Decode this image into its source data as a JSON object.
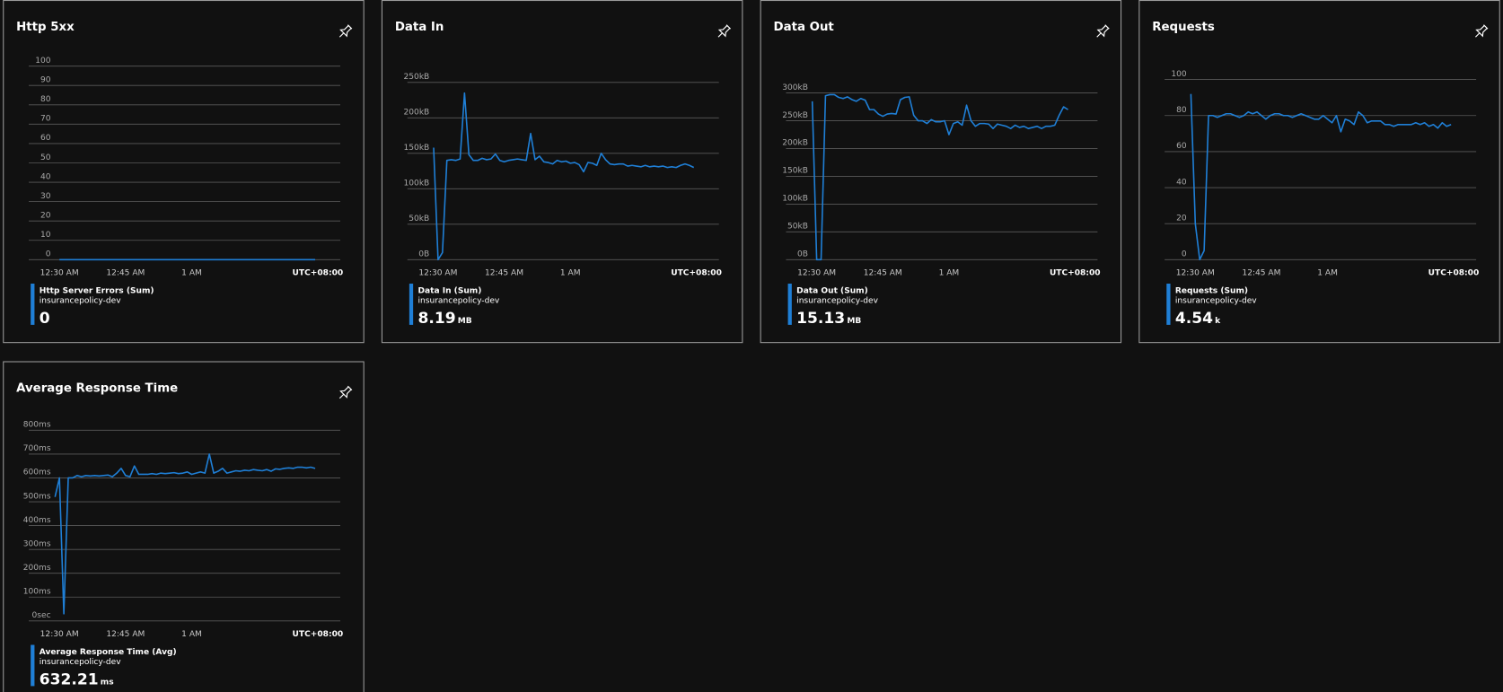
{
  "chart_data": [
    {
      "type": "line",
      "title": "Http 5xx",
      "categories": [
        null,
        "12:30 AM",
        null,
        null,
        null,
        null,
        null,
        null,
        null,
        null,
        null,
        null,
        null,
        null,
        null,
        null,
        "12:45 AM",
        null,
        null,
        null,
        null,
        null,
        null,
        null,
        null,
        null,
        null,
        null,
        null,
        null,
        null,
        "1 AM",
        null,
        null,
        null,
        null,
        null,
        null,
        null,
        null,
        null,
        null,
        null,
        null,
        null,
        null,
        null,
        null,
        null,
        null,
        null,
        null,
        null,
        null,
        null,
        null,
        null,
        null,
        null,
        null,
        null
      ],
      "timezone": "UTC+08:00",
      "ylim": [
        0,
        100
      ],
      "yticks": [
        0,
        10,
        20,
        30,
        40,
        50,
        60,
        70,
        80,
        90,
        100
      ],
      "series": [
        {
          "name": "Http Server Errors (Sum)",
          "resource": "insurancepolicy-dev",
          "color": "#1f7fd6",
          "total": 0,
          "values": [
            null,
            0,
            0,
            0,
            0,
            0,
            0,
            0,
            0,
            0,
            0,
            0,
            0,
            0,
            0,
            0,
            0,
            0,
            0,
            0,
            0,
            0,
            0,
            0,
            0,
            0,
            0,
            0,
            0,
            0,
            0,
            0,
            0,
            0,
            0,
            0,
            0,
            0,
            0,
            0,
            0,
            0,
            0,
            0,
            0,
            0,
            0,
            0,
            0,
            0,
            0,
            0,
            0,
            0,
            0,
            0,
            0,
            0,
            0,
            0,
            null
          ]
        }
      ]
    },
    {
      "type": "line",
      "title": "Data In",
      "categories": [
        null,
        "12:30 AM",
        null,
        null,
        null,
        null,
        null,
        null,
        null,
        null,
        null,
        null,
        null,
        null,
        null,
        null,
        "12:45 AM",
        null,
        null,
        null,
        null,
        null,
        null,
        null,
        null,
        null,
        null,
        null,
        null,
        null,
        null,
        "1 AM",
        null,
        null,
        null,
        null,
        null,
        null,
        null,
        null,
        null,
        null,
        null,
        null,
        null,
        null,
        null,
        null,
        null,
        null,
        null,
        null,
        null,
        null,
        null,
        null,
        null,
        null,
        null,
        null,
        null
      ],
      "timezone": "UTC+08:00",
      "ylim": [
        0,
        250
      ],
      "yticks": [
        {
          "value": 0,
          "label": "0B"
        },
        {
          "value": 50,
          "label": "50kB"
        },
        {
          "value": 100,
          "label": "100kB"
        },
        {
          "value": 150,
          "label": "150kB"
        },
        {
          "value": 200,
          "label": "200kB"
        },
        {
          "value": 250,
          "label": "250kB"
        }
      ],
      "series": [
        {
          "name": "Data In (Sum)",
          "resource": "insurancepolicy-dev",
          "color": "#1f7fd6",
          "total": 8.19,
          "unit": "MB",
          "values": [
            158,
            0,
            10,
            140,
            141,
            140,
            142,
            235,
            148,
            140,
            140,
            143,
            141,
            142,
            149,
            140,
            138,
            140,
            141,
            142,
            141,
            140,
            178,
            141,
            146,
            138,
            137,
            135,
            140,
            138,
            139,
            136,
            137,
            134,
            124,
            137,
            136,
            133,
            150,
            141,
            135,
            134,
            135,
            135,
            132,
            133,
            132,
            131,
            133,
            131,
            132,
            131,
            132,
            130,
            131,
            130,
            133,
            135,
            133,
            130,
            null
          ]
        }
      ]
    },
    {
      "type": "line",
      "title": "Data Out",
      "categories": [
        null,
        "12:30 AM",
        null,
        null,
        null,
        null,
        null,
        null,
        null,
        null,
        null,
        null,
        null,
        null,
        null,
        null,
        "12:45 AM",
        null,
        null,
        null,
        null,
        null,
        null,
        null,
        null,
        null,
        null,
        null,
        null,
        null,
        null,
        "1 AM",
        null,
        null,
        null,
        null,
        null,
        null,
        null,
        null,
        null,
        null,
        null,
        null,
        null,
        null,
        null,
        null,
        null,
        null,
        null,
        null,
        null,
        null,
        null,
        null,
        null,
        null,
        null,
        null,
        null
      ],
      "timezone": "UTC+08:00",
      "ylim": [
        0,
        300
      ],
      "yticks": [
        {
          "value": 0,
          "label": "0B"
        },
        {
          "value": 50,
          "label": "50kB"
        },
        {
          "value": 100,
          "label": "100kB"
        },
        {
          "value": 150,
          "label": "150kB"
        },
        {
          "value": 200,
          "label": "200kB"
        },
        {
          "value": 250,
          "label": "250kB"
        },
        {
          "value": 300,
          "label": "300kB"
        }
      ],
      "series": [
        {
          "name": "Data Out (Sum)",
          "resource": "insurancepolicy-dev",
          "color": "#1f7fd6",
          "total": 15.13,
          "unit": "MB",
          "values": [
            285,
            0,
            0,
            295,
            297,
            297,
            292,
            290,
            293,
            288,
            285,
            290,
            287,
            270,
            270,
            262,
            258,
            262,
            263,
            262,
            288,
            292,
            293,
            260,
            250,
            250,
            245,
            252,
            248,
            248,
            250,
            225,
            245,
            248,
            242,
            278,
            250,
            240,
            245,
            245,
            244,
            236,
            244,
            242,
            240,
            236,
            242,
            238,
            240,
            236,
            238,
            240,
            236,
            240,
            240,
            242,
            260,
            275,
            270,
            null,
            null
          ]
        }
      ]
    },
    {
      "type": "line",
      "title": "Requests",
      "categories": [
        null,
        "12:30 AM",
        null,
        null,
        null,
        null,
        null,
        null,
        null,
        null,
        null,
        null,
        null,
        null,
        null,
        null,
        "12:45 AM",
        null,
        null,
        null,
        null,
        null,
        null,
        null,
        null,
        null,
        null,
        null,
        null,
        null,
        null,
        "1 AM",
        null,
        null,
        null,
        null,
        null,
        null,
        null,
        null,
        null,
        null,
        null,
        null,
        null,
        null,
        null,
        null,
        null,
        null,
        null,
        null,
        null,
        null,
        null,
        null,
        null,
        null,
        null,
        null,
        null
      ],
      "timezone": "UTC+08:00",
      "ylim": [
        0,
        100
      ],
      "yticks": [
        0,
        20,
        40,
        60,
        80,
        100
      ],
      "series": [
        {
          "name": "Requests (Sum)",
          "resource": "insurancepolicy-dev",
          "color": "#1f7fd6",
          "total": 4.54,
          "unit": "k",
          "values": [
            92,
            20,
            0,
            5,
            80,
            80,
            79,
            80,
            81,
            81,
            80,
            79,
            80,
            82,
            81,
            82,
            80,
            78,
            80,
            81,
            81,
            80,
            80,
            79,
            80,
            81,
            80,
            79,
            78,
            78,
            80,
            78,
            76,
            80,
            71,
            78,
            77,
            75,
            82,
            80,
            76,
            77,
            77,
            77,
            75,
            75,
            74,
            75,
            75,
            75,
            75,
            76,
            75,
            76,
            74,
            75,
            73,
            76,
            74,
            75,
            null
          ]
        }
      ]
    },
    {
      "type": "line",
      "title": "Average Response Time",
      "categories": [
        null,
        "12:30 AM",
        null,
        null,
        null,
        null,
        null,
        null,
        null,
        null,
        null,
        null,
        null,
        null,
        null,
        null,
        "12:45 AM",
        null,
        null,
        null,
        null,
        null,
        null,
        null,
        null,
        null,
        null,
        null,
        null,
        null,
        null,
        "1 AM",
        null,
        null,
        null,
        null,
        null,
        null,
        null,
        null,
        null,
        null,
        null,
        null,
        null,
        null,
        null,
        null,
        null,
        null,
        null,
        null,
        null,
        null,
        null,
        null,
        null,
        null,
        null,
        null,
        null
      ],
      "timezone": "UTC+08:00",
      "ylim": [
        0,
        800
      ],
      "yticks": [
        {
          "value": 0,
          "label": "0sec"
        },
        {
          "value": 100,
          "label": "100ms"
        },
        {
          "value": 200,
          "label": "200ms"
        },
        {
          "value": 300,
          "label": "300ms"
        },
        {
          "value": 400,
          "label": "400ms"
        },
        {
          "value": 500,
          "label": "500ms"
        },
        {
          "value": 600,
          "label": "600ms"
        },
        {
          "value": 700,
          "label": "700ms"
        },
        {
          "value": 800,
          "label": "800ms"
        }
      ],
      "series": [
        {
          "name": "Average Response Time (Avg)",
          "resource": "insurancepolicy-dev",
          "color": "#1f7fd6",
          "total": 632.21,
          "unit": "ms",
          "values": [
            520,
            600,
            30,
            600,
            600,
            610,
            605,
            610,
            608,
            610,
            608,
            610,
            612,
            605,
            620,
            640,
            610,
            605,
            650,
            615,
            615,
            615,
            618,
            615,
            620,
            618,
            620,
            622,
            618,
            620,
            625,
            615,
            620,
            625,
            620,
            700,
            620,
            628,
            640,
            620,
            625,
            630,
            628,
            632,
            630,
            635,
            632,
            630,
            635,
            628,
            638,
            636,
            640,
            642,
            640,
            645,
            645,
            642,
            645,
            640,
            null
          ]
        }
      ]
    }
  ]
}
